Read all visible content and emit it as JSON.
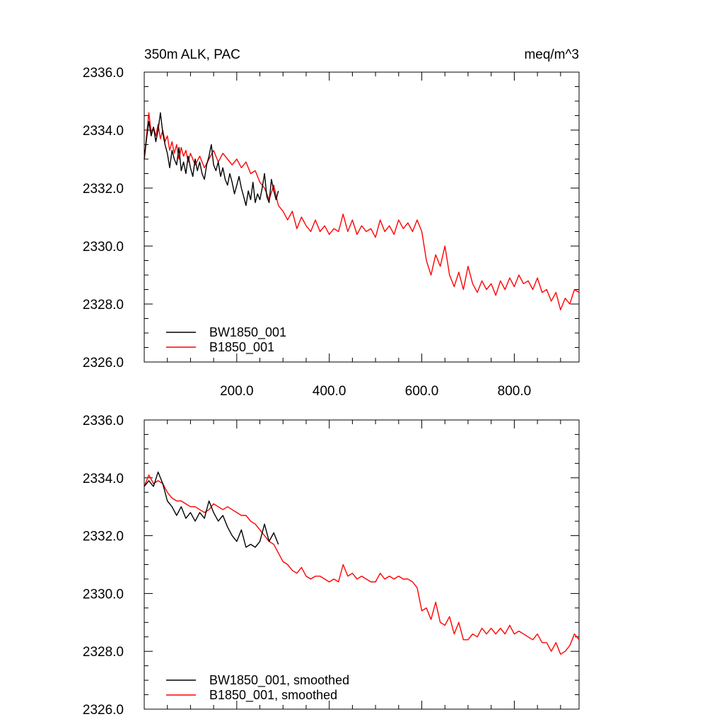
{
  "figure": {
    "title_left": "350m ALK, PAC",
    "title_right": "meq/m^3"
  },
  "colors": {
    "BW1850_001": "#000000",
    "B1850_001": "#ff0000"
  },
  "chart_data": [
    {
      "type": "line",
      "title": "350m ALK, PAC",
      "units": "meq/m^3",
      "xlim": [
        0,
        940
      ],
      "ylim": [
        2326,
        2336
      ],
      "x_ticks": [
        200,
        400,
        600,
        800
      ],
      "x_tick_labels": [
        "200.0",
        "400.0",
        "600.0",
        "800.0"
      ],
      "y_ticks": [
        2326,
        2328,
        2330,
        2332,
        2334,
        2336
      ],
      "y_tick_labels": [
        "2326.0",
        "2328.0",
        "2330.0",
        "2332.0",
        "2334.0",
        "2336.0"
      ],
      "grid": false,
      "legend_position": "bottom-left",
      "series": [
        {
          "name": "BW1850_001",
          "color": "#000000",
          "x": [
            0,
            5,
            10,
            15,
            20,
            25,
            30,
            35,
            40,
            45,
            50,
            55,
            60,
            65,
            70,
            75,
            80,
            85,
            90,
            95,
            100,
            105,
            110,
            115,
            120,
            125,
            130,
            135,
            140,
            145,
            150,
            155,
            160,
            165,
            170,
            175,
            180,
            185,
            190,
            195,
            200,
            205,
            210,
            215,
            220,
            225,
            230,
            235,
            240,
            245,
            250,
            255,
            260,
            265,
            270,
            275,
            280,
            285,
            290
          ],
          "values": [
            2333.0,
            2333.7,
            2334.3,
            2333.8,
            2334.1,
            2333.6,
            2334.0,
            2334.6,
            2333.9,
            2333.5,
            2333.2,
            2332.7,
            2333.3,
            2333.0,
            2332.8,
            2333.4,
            2332.6,
            2332.9,
            2332.5,
            2333.1,
            2332.7,
            2332.4,
            2333.0,
            2332.6,
            2332.9,
            2332.5,
            2332.3,
            2332.8,
            2333.1,
            2333.5,
            2332.8,
            2332.6,
            2332.9,
            2332.4,
            2332.7,
            2332.3,
            2332.1,
            2332.5,
            2332.2,
            2331.8,
            2332.1,
            2332.4,
            2332.0,
            2331.7,
            2331.4,
            2331.9,
            2331.6,
            2332.2,
            2331.5,
            2331.8,
            2331.6,
            2332.0,
            2332.5,
            2331.7,
            2331.5,
            2332.3,
            2331.9,
            2331.6,
            2331.9
          ]
        },
        {
          "name": "B1850_001",
          "color": "#ff0000",
          "x": [
            0,
            5,
            10,
            15,
            20,
            25,
            30,
            35,
            40,
            45,
            50,
            55,
            60,
            65,
            70,
            75,
            80,
            85,
            90,
            95,
            100,
            110,
            120,
            130,
            140,
            150,
            160,
            170,
            180,
            190,
            200,
            210,
            220,
            230,
            240,
            250,
            260,
            270,
            280,
            290,
            300,
            310,
            320,
            330,
            340,
            350,
            360,
            370,
            380,
            390,
            400,
            410,
            420,
            430,
            440,
            450,
            460,
            470,
            480,
            490,
            500,
            510,
            520,
            530,
            540,
            550,
            560,
            570,
            580,
            590,
            600,
            610,
            620,
            630,
            640,
            650,
            660,
            670,
            680,
            690,
            700,
            710,
            720,
            730,
            740,
            750,
            760,
            770,
            780,
            790,
            800,
            810,
            820,
            830,
            840,
            850,
            860,
            870,
            880,
            890,
            900,
            910,
            920,
            930,
            940
          ],
          "values": [
            2333.0,
            2333.8,
            2334.6,
            2333.9,
            2334.1,
            2333.8,
            2334.2,
            2333.7,
            2334.0,
            2333.6,
            2333.8,
            2333.3,
            2333.6,
            2333.2,
            2333.5,
            2333.0,
            2333.4,
            2333.1,
            2333.3,
            2332.9,
            2333.2,
            2332.8,
            2333.1,
            2332.7,
            2333.0,
            2333.3,
            2332.9,
            2333.2,
            2333.0,
            2332.8,
            2333.0,
            2332.7,
            2332.9,
            2332.5,
            2332.6,
            2332.2,
            2332.0,
            2331.6,
            2332.1,
            2331.4,
            2331.2,
            2330.9,
            2331.2,
            2330.6,
            2331.0,
            2330.7,
            2330.5,
            2330.9,
            2330.5,
            2330.7,
            2330.4,
            2330.6,
            2330.5,
            2331.1,
            2330.5,
            2330.9,
            2330.4,
            2330.7,
            2330.5,
            2330.6,
            2330.3,
            2330.9,
            2330.5,
            2330.7,
            2330.4,
            2330.9,
            2330.6,
            2330.8,
            2330.5,
            2330.9,
            2330.5,
            2329.5,
            2329.0,
            2329.7,
            2329.3,
            2330.0,
            2329.0,
            2328.6,
            2329.1,
            2328.5,
            2329.3,
            2328.7,
            2328.4,
            2328.8,
            2328.5,
            2328.7,
            2328.3,
            2328.8,
            2328.5,
            2328.9,
            2328.6,
            2329.0,
            2328.7,
            2328.8,
            2328.5,
            2328.9,
            2328.4,
            2328.5,
            2328.1,
            2328.4,
            2327.8,
            2328.2,
            2328.0,
            2328.5,
            2328.4
          ]
        }
      ]
    },
    {
      "type": "line",
      "xlim": [
        0,
        940
      ],
      "ylim": [
        2326,
        2336
      ],
      "x_ticks": [
        200,
        400,
        600,
        800
      ],
      "y_ticks": [
        2326,
        2328,
        2330,
        2332,
        2334,
        2336
      ],
      "y_tick_labels": [
        "2326.0",
        "2328.0",
        "2330.0",
        "2332.0",
        "2334.0",
        "2336.0"
      ],
      "grid": false,
      "legend_position": "bottom-left",
      "series": [
        {
          "name": "BW1850_001, smoothed",
          "color": "#000000",
          "x": [
            0,
            10,
            20,
            30,
            40,
            50,
            60,
            70,
            80,
            90,
            100,
            110,
            120,
            130,
            140,
            150,
            160,
            170,
            180,
            190,
            200,
            210,
            220,
            230,
            240,
            250,
            260,
            270,
            280,
            290
          ],
          "values": [
            2333.7,
            2333.9,
            2333.7,
            2334.2,
            2333.8,
            2333.2,
            2333.0,
            2332.7,
            2333.0,
            2332.6,
            2332.8,
            2332.5,
            2332.8,
            2332.6,
            2333.2,
            2332.8,
            2332.5,
            2332.7,
            2332.3,
            2332.0,
            2331.8,
            2332.2,
            2331.6,
            2331.7,
            2331.6,
            2331.8,
            2332.4,
            2331.8,
            2332.1,
            2331.7
          ]
        },
        {
          "name": "B1850_001, smoothed",
          "color": "#ff0000",
          "x": [
            0,
            10,
            20,
            30,
            40,
            50,
            60,
            70,
            80,
            90,
            100,
            110,
            120,
            130,
            140,
            150,
            160,
            170,
            180,
            190,
            200,
            210,
            220,
            230,
            240,
            250,
            260,
            270,
            280,
            290,
            300,
            310,
            320,
            330,
            340,
            350,
            360,
            370,
            380,
            390,
            400,
            410,
            420,
            430,
            440,
            450,
            460,
            470,
            480,
            490,
            500,
            510,
            520,
            530,
            540,
            550,
            560,
            570,
            580,
            590,
            600,
            610,
            620,
            630,
            640,
            650,
            660,
            670,
            680,
            690,
            700,
            710,
            720,
            730,
            740,
            750,
            760,
            770,
            780,
            790,
            800,
            810,
            820,
            830,
            840,
            850,
            860,
            870,
            880,
            890,
            900,
            910,
            920,
            930,
            940
          ],
          "values": [
            2333.7,
            2334.1,
            2333.8,
            2333.9,
            2333.8,
            2333.5,
            2333.3,
            2333.2,
            2333.2,
            2333.1,
            2333.0,
            2333.0,
            2332.9,
            2332.8,
            2332.9,
            2333.1,
            2333.0,
            2332.9,
            2333.0,
            2332.9,
            2332.8,
            2332.7,
            2332.7,
            2332.5,
            2332.4,
            2332.2,
            2332.0,
            2331.8,
            2331.7,
            2331.4,
            2331.1,
            2331.0,
            2330.8,
            2330.7,
            2330.9,
            2330.6,
            2330.5,
            2330.6,
            2330.6,
            2330.5,
            2330.4,
            2330.5,
            2330.4,
            2331.0,
            2330.6,
            2330.7,
            2330.5,
            2330.6,
            2330.5,
            2330.4,
            2330.4,
            2330.7,
            2330.5,
            2330.6,
            2330.5,
            2330.6,
            2330.5,
            2330.5,
            2330.4,
            2330.2,
            2329.4,
            2329.5,
            2329.1,
            2329.7,
            2329.0,
            2328.9,
            2329.2,
            2328.6,
            2329.0,
            2328.4,
            2328.4,
            2328.6,
            2328.5,
            2328.8,
            2328.6,
            2328.8,
            2328.6,
            2328.8,
            2328.6,
            2328.9,
            2328.6,
            2328.7,
            2328.6,
            2328.5,
            2328.4,
            2328.6,
            2328.3,
            2328.3,
            2328.0,
            2328.3,
            2327.9,
            2328.0,
            2328.2,
            2328.6,
            2328.4
          ]
        }
      ]
    }
  ]
}
